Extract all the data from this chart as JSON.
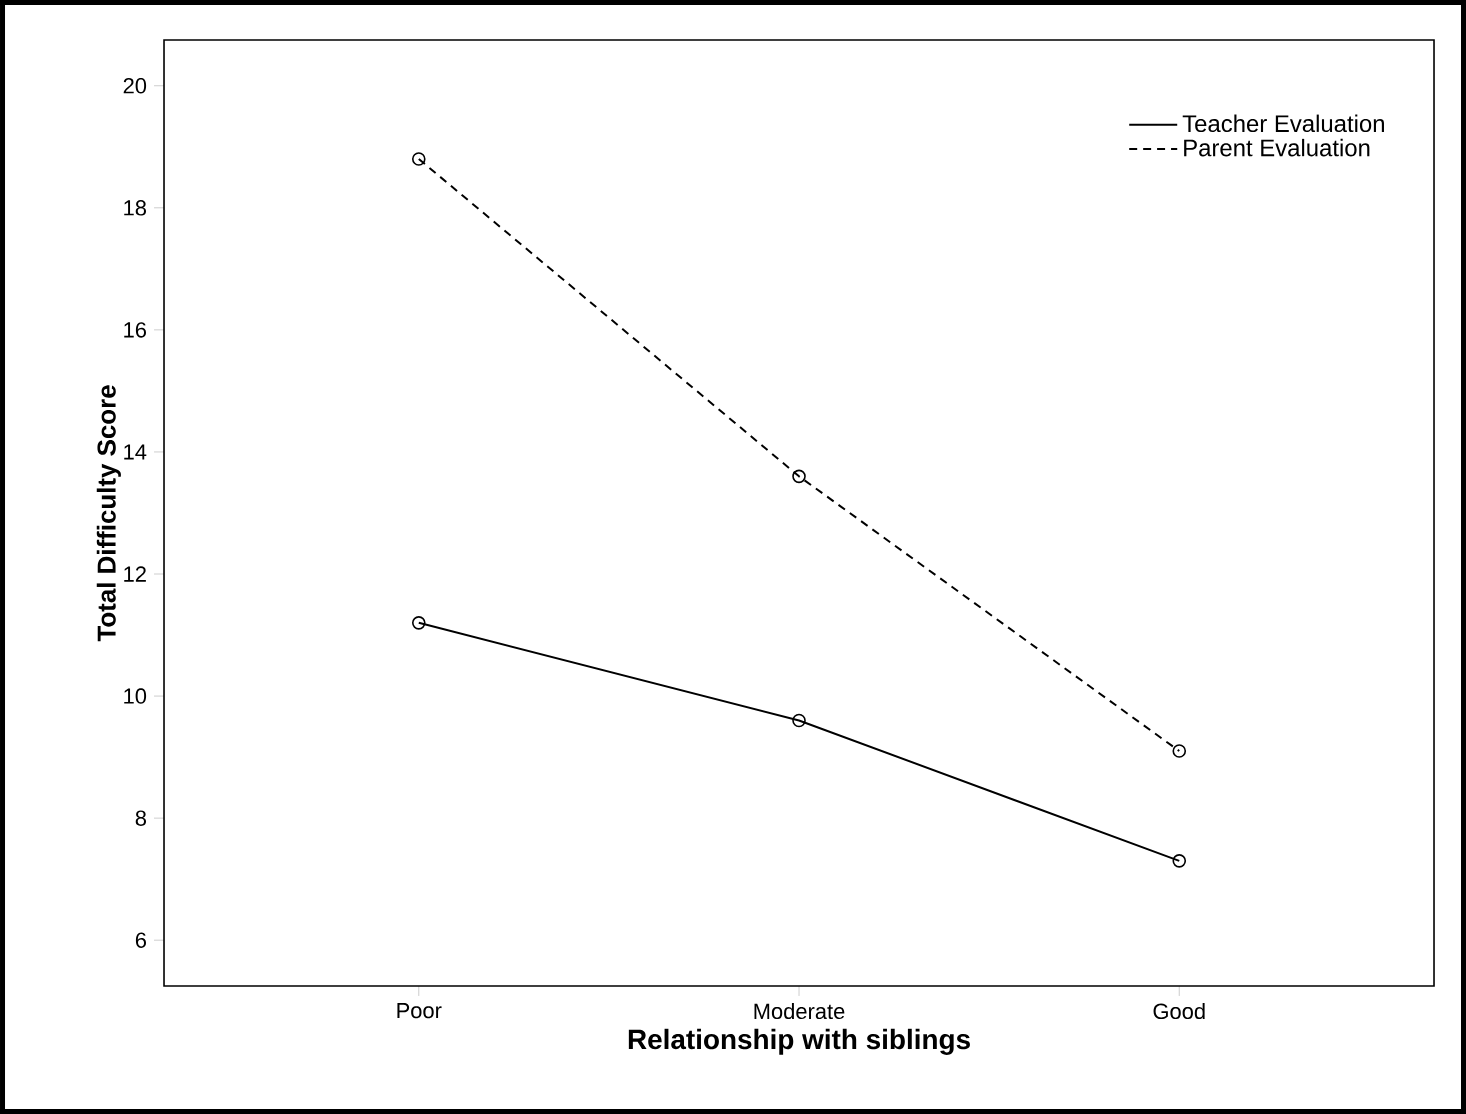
{
  "chart_data": {
    "type": "line",
    "xlabel": "Relationship with siblings",
    "ylabel": "Total Difficulty Score",
    "categories": [
      "Poor",
      "Moderate",
      "Good"
    ],
    "series": [
      {
        "name": "Teacher Evaluation",
        "color": "#000000",
        "line_style": "solid",
        "values": [
          11.2,
          9.6,
          7.3
        ]
      },
      {
        "name": "Parent Evaluation",
        "color": "#000000",
        "line_style": "dashed",
        "values": [
          18.8,
          13.6,
          9.1
        ]
      }
    ],
    "marker": "circle",
    "legend": "top right",
    "grid": false,
    "ylim": [
      5.25,
      20.75
    ],
    "yticks": [
      6,
      8,
      10,
      12,
      14,
      16,
      18,
      20
    ]
  }
}
